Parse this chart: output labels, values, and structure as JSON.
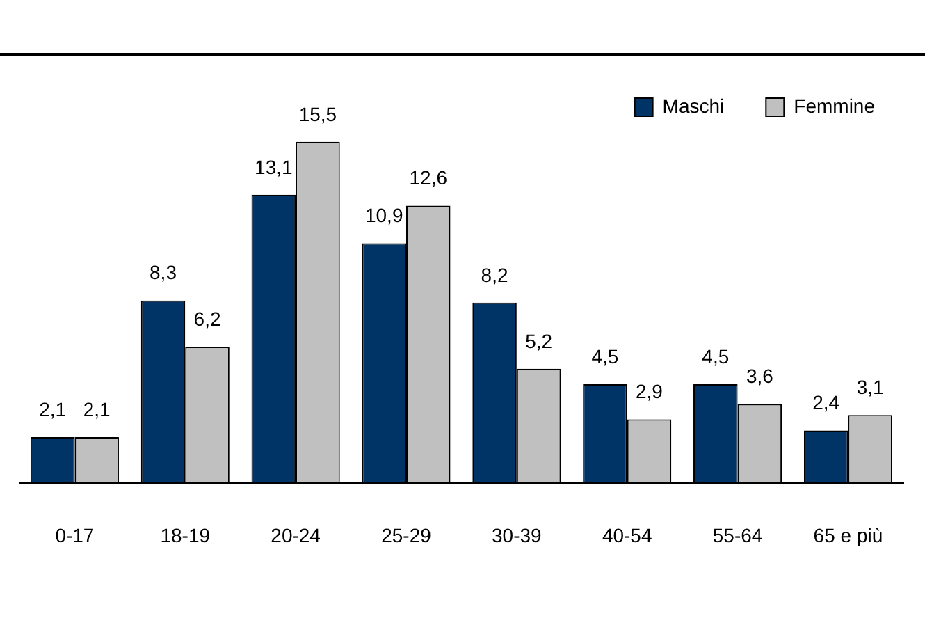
{
  "chart_data": {
    "type": "bar",
    "categories": [
      "0-17",
      "18-19",
      "20-24",
      "25-29",
      "30-39",
      "40-54",
      "55-64",
      "65 e più"
    ],
    "series": [
      {
        "name": "Maschi",
        "color": "#003366",
        "values": [
          2.1,
          8.3,
          13.1,
          10.9,
          8.2,
          4.5,
          4.5,
          2.4
        ],
        "value_labels": [
          "2,1",
          "8,3",
          "13,1",
          "10,9",
          "8,2",
          "4,5",
          "4,5",
          "2,4"
        ]
      },
      {
        "name": "Femmine",
        "color": "#c0c0c0",
        "values": [
          2.1,
          6.2,
          15.5,
          12.6,
          5.2,
          2.9,
          3.6,
          3.1
        ],
        "value_labels": [
          "2,1",
          "6,2",
          "15,5",
          "12,6",
          "5,2",
          "2,9",
          "3,6",
          "3,1"
        ]
      }
    ],
    "tick_labels": "x",
    "grid": false,
    "legend": "top right"
  }
}
